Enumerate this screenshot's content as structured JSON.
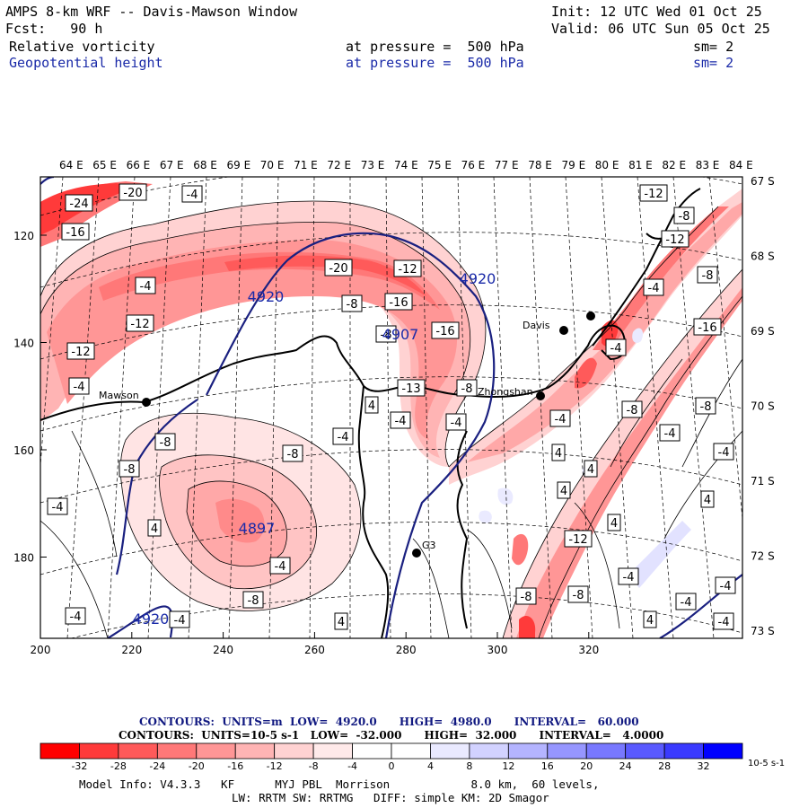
{
  "header": {
    "title": "AMPS 8-km WRF -- Davis-Mawson Window",
    "init": "Init: 12 UTC Wed 01 Oct 25",
    "forecast": "Fcst:   90 h",
    "valid": "Valid: 06 UTC Sun 05 Oct 25",
    "field1": "Relative vorticity",
    "field1_level": "at pressure =  500 hPa",
    "field1_sm": "sm= 2",
    "field2": "Geopotential height",
    "field2_level": "at pressure =  500 hPa",
    "field2_sm": "sm= 2"
  },
  "map": {
    "top_lon_labels": [
      "64 E",
      "65 E",
      "66 E",
      "67 E",
      "68 E",
      "69 E",
      "70 E",
      "71 E",
      "72 E",
      "73 E",
      "74 E",
      "75 E",
      "76 E",
      "77 E",
      "78 E",
      "79 E",
      "80 E",
      "81 E",
      "82 E",
      "83 E",
      "84 E"
    ],
    "right_lat_labels": [
      "67 S",
      "68 S",
      "69 S",
      "70 S",
      "71 S",
      "72 S",
      "73 S"
    ],
    "bottom_x_ticks": [
      "200",
      "220",
      "240",
      "260",
      "280",
      "300",
      "320"
    ],
    "left_y_ticks": [
      "120",
      "140",
      "160",
      "180"
    ],
    "stations": [
      {
        "name": "Mawson"
      },
      {
        "name": "Davis"
      },
      {
        "name": "Zhongshan"
      },
      {
        "name": "G3"
      }
    ],
    "height_labels": [
      "4920",
      "4920",
      "4907",
      "4897",
      "4920"
    ],
    "vort_labels": [
      "-24",
      "-20",
      "-4",
      "-16",
      "-4",
      "-12",
      "-12",
      "-4",
      "-20",
      "-12",
      "-8",
      "-16",
      "-8",
      "-16",
      "-13",
      "-8",
      "4",
      "-4",
      "-4",
      "-8",
      "-4",
      "-8",
      "-8",
      "-12",
      "-8",
      "-12",
      "-4",
      "-8",
      "-4",
      "-16",
      "-8",
      "-4",
      "-8",
      "-4",
      "4",
      "-4",
      "4",
      "4",
      "4",
      "-4",
      "4",
      "-4",
      "-8",
      "4",
      "-12",
      "-8",
      "-8",
      "-4",
      "-4",
      "-4",
      "-4",
      "4",
      "4",
      "-4",
      "-4"
    ]
  },
  "footer": {
    "contours1": "CONTOURS:  UNITS=m  LOW=  4920.0      HIGH=  4980.0      INTERVAL=   60.000",
    "contours2": "CONTOURS:  UNITS=10-5 s-1   LOW=  -32.000      HIGH=  32.000      INTERVAL=   4.0000",
    "colorbar_labels": [
      "-32",
      "-28",
      "-24",
      "-20",
      "-16",
      "-12",
      "-8",
      "-4",
      "0",
      "4",
      "8",
      "12",
      "16",
      "20",
      "24",
      "28",
      "32"
    ],
    "colorbar_unit": "10-5 s-1",
    "colorbar_colors": [
      "#ff0000",
      "#ff3a3a",
      "#ff5a5a",
      "#ff7878",
      "#ff9696",
      "#ffb4b4",
      "#ffd2d2",
      "#ffeaea",
      "#ffffff",
      "#ffffff",
      "#eaeaff",
      "#d2d2ff",
      "#b4b4ff",
      "#9696ff",
      "#7878ff",
      "#5a5aff",
      "#3a3aff",
      "#0000ff"
    ],
    "model_info": "Model Info: V4.3.3   KF      MYJ PBL  Morrison            8.0 km,  60 levels,",
    "model_info2": "LW: RRTM SW: RRTMG   DIFF: simple KM: 2D Smagor"
  },
  "colors": {
    "height": "#1a2080",
    "label_blue": "#1a2aa8"
  }
}
